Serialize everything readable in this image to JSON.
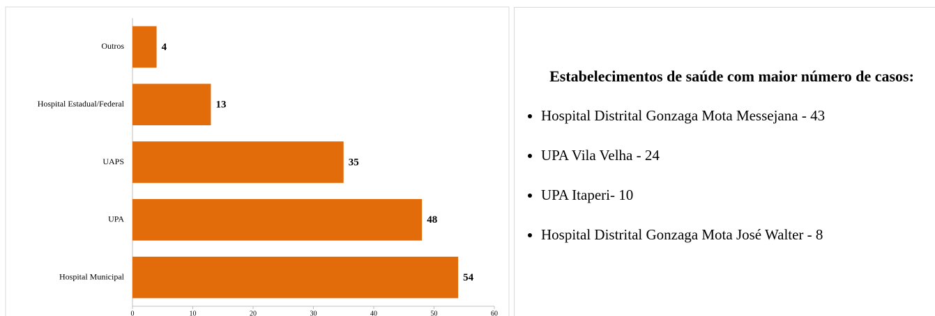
{
  "chart_data": {
    "type": "bar",
    "orientation": "horizontal",
    "categories": [
      "Outros",
      "Hospital Estadual/Federal",
      "UAPS",
      "UPA",
      "Hospital Municipal"
    ],
    "values": [
      4,
      13,
      35,
      48,
      54
    ],
    "color": "#e36c0a",
    "xlim": [
      0,
      60
    ],
    "xticks": [
      0,
      10,
      20,
      30,
      40,
      50,
      60
    ],
    "grid": false
  },
  "panel": {
    "title": "Estabelecimentos de saúde com maior número de casos:",
    "items": [
      "Hospital Distrital Gonzaga Mota Messejana - 43",
      "UPA Vila Velha - 24",
      "UPA Itaperi-  10",
      "Hospital Distrital Gonzaga Mota José Walter - 8"
    ]
  }
}
